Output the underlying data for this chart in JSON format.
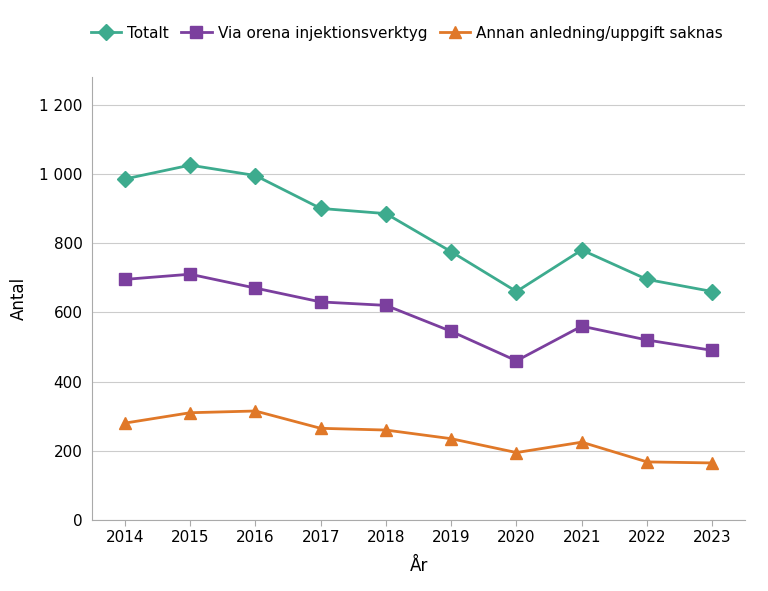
{
  "years": [
    2014,
    2015,
    2016,
    2017,
    2018,
    2019,
    2020,
    2021,
    2022,
    2023
  ],
  "totalt": [
    985,
    1025,
    995,
    900,
    885,
    775,
    660,
    780,
    695,
    660
  ],
  "via_orena": [
    695,
    710,
    670,
    630,
    620,
    545,
    460,
    560,
    520,
    490
  ],
  "annan": [
    280,
    310,
    315,
    265,
    260,
    235,
    195,
    225,
    168,
    165
  ],
  "totalt_color": "#3dab8e",
  "via_orena_color": "#7b3f9e",
  "annan_color": "#e07828",
  "totalt_label": "Totalt",
  "via_orena_label": "Via orena injektionsverktyg",
  "annan_label": "Annan anledning/uppgift saknas",
  "xlabel": "År",
  "ylabel": "Antal",
  "ylim": [
    0,
    1280
  ],
  "yticks": [
    0,
    200,
    400,
    600,
    800,
    1000,
    1200
  ],
  "ytick_labels": [
    "0",
    "200",
    "400",
    "600",
    "800",
    "1 000",
    "1 200"
  ],
  "background_color": "#ffffff",
  "grid_color": "#cccccc",
  "linewidth": 2.0,
  "markersize": 8
}
